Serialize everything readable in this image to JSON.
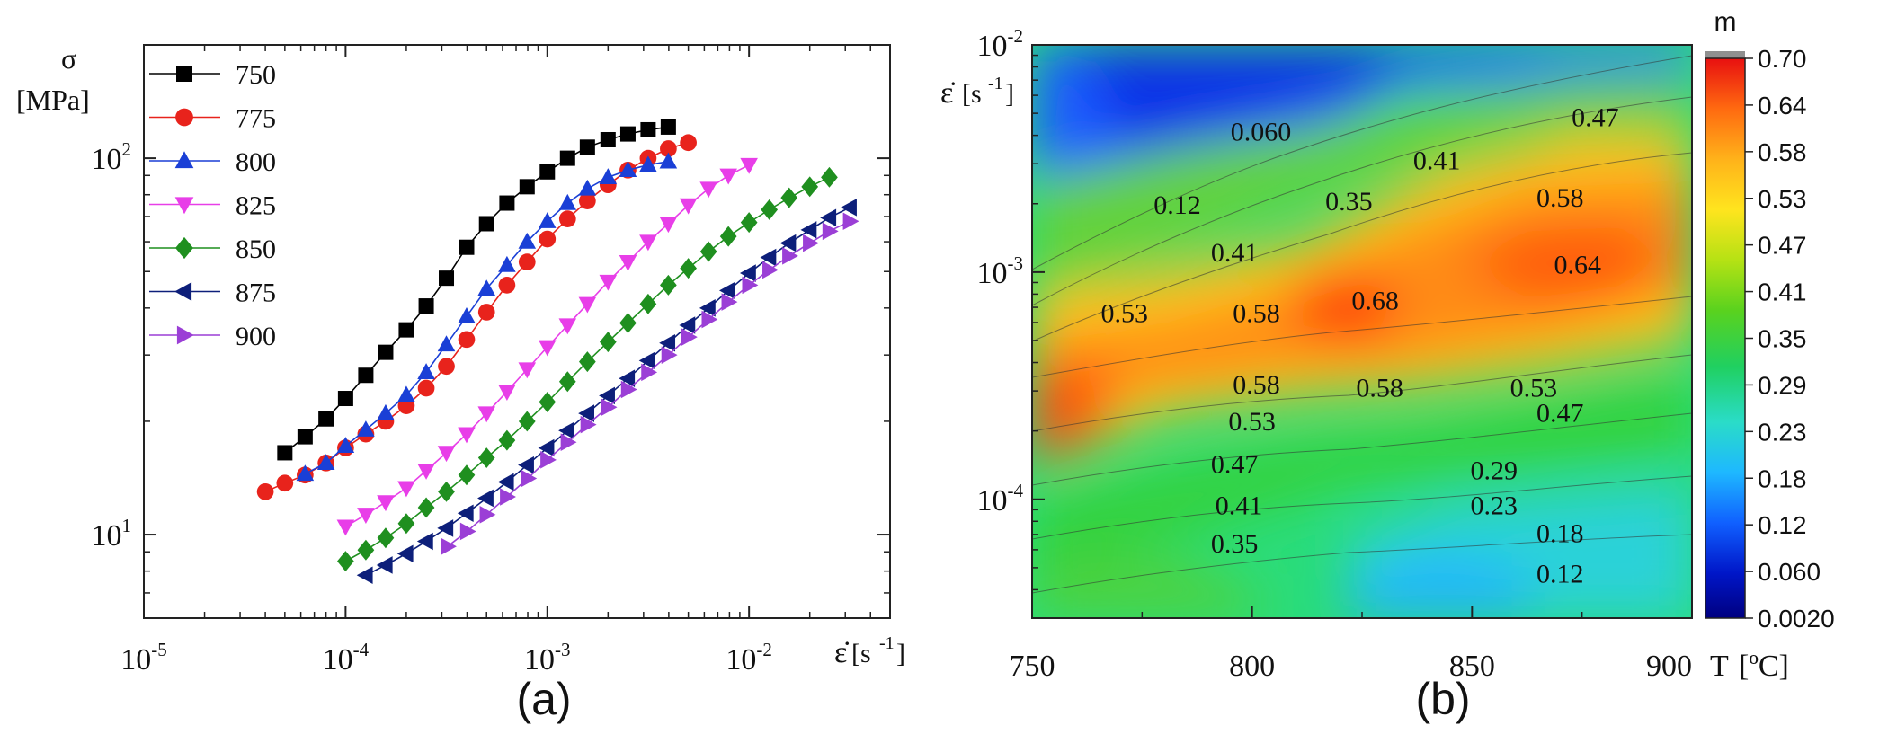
{
  "chart_data": [
    {
      "panel": "(a)",
      "type": "line",
      "xscale": "log",
      "yscale": "log",
      "xlim": [
        1e-05,
        0.05
      ],
      "ylim": [
        6,
        200
      ],
      "ylabel_sym": "σ",
      "ylabel_unit": "[MPa]",
      "xlabel": "ε̇[s-1]",
      "xlabel_sym": "ε̇",
      "xlabel_unit": "[s",
      "xlabel_sup": "-1",
      "xlabel_close": "]",
      "xticks": [
        {
          "value": 1e-05,
          "base": "10",
          "exp": "-5"
        },
        {
          "value": 0.0001,
          "base": "10",
          "exp": "-4"
        },
        {
          "value": 0.001,
          "base": "10",
          "exp": "-3"
        },
        {
          "value": 0.01,
          "base": "10",
          "exp": "-2"
        }
      ],
      "yticks": [
        {
          "value": 10,
          "base": "10",
          "exp": "1"
        },
        {
          "value": 100,
          "base": "10",
          "exp": "2"
        }
      ],
      "legend_position": "top-left",
      "series": [
        {
          "name": "750",
          "color": "#000000",
          "marker": "square",
          "x": [
            5e-05,
            6.3e-05,
            8e-05,
            0.0001,
            0.000126,
            0.000158,
            0.0002,
            0.000251,
            0.000316,
            0.000398,
            0.0005,
            0.000631,
            0.000794,
            0.001,
            0.00126,
            0.00158,
            0.002,
            0.00251,
            0.00316,
            0.00398
          ],
          "y": [
            16.5,
            18.2,
            20.3,
            23,
            26.5,
            30.5,
            35,
            40.5,
            48,
            58,
            67,
            76,
            84,
            92,
            100,
            107,
            112,
            116,
            119,
            121
          ]
        },
        {
          "name": "775",
          "color": "#e8231c",
          "marker": "circle",
          "x": [
            4e-05,
            5e-05,
            6.3e-05,
            8e-05,
            0.0001,
            0.000126,
            0.000158,
            0.0002,
            0.000251,
            0.000316,
            0.000398,
            0.0005,
            0.000631,
            0.000794,
            0.001,
            0.00126,
            0.00158,
            0.002,
            0.00251,
            0.00316,
            0.00398,
            0.005
          ],
          "y": [
            13,
            13.7,
            14.4,
            15.5,
            17,
            18.5,
            20,
            22,
            24.5,
            28,
            33,
            39,
            46,
            53,
            61,
            69,
            77,
            85,
            93,
            100,
            106,
            110
          ]
        },
        {
          "name": "800",
          "color": "#1a3fd6",
          "marker": "triangle-up",
          "x": [
            6.3e-05,
            8e-05,
            0.0001,
            0.000126,
            0.000158,
            0.0002,
            0.000251,
            0.000316,
            0.000398,
            0.0005,
            0.000631,
            0.000794,
            0.001,
            0.00126,
            0.00158,
            0.002,
            0.00251,
            0.00316,
            0.00398
          ],
          "y": [
            14.5,
            15.5,
            17.2,
            19,
            21,
            23.5,
            27,
            32,
            38,
            45,
            52,
            60,
            68,
            76,
            83,
            89,
            93,
            96,
            98
          ]
        },
        {
          "name": "825",
          "color": "#e83ee8",
          "marker": "triangle-down",
          "x": [
            0.0001,
            0.000126,
            0.000158,
            0.0002,
            0.000251,
            0.000316,
            0.000398,
            0.0005,
            0.000631,
            0.000794,
            0.001,
            0.00126,
            0.00158,
            0.002,
            0.00251,
            0.00316,
            0.00398,
            0.005,
            0.0063,
            0.0079,
            0.01
          ],
          "y": [
            10.5,
            11.3,
            12.2,
            13.3,
            14.8,
            16.5,
            18.5,
            21,
            24,
            27.5,
            31.5,
            36,
            41,
            47,
            53,
            60,
            67,
            75,
            83,
            90,
            96
          ]
        },
        {
          "name": "850",
          "color": "#1f8f1f",
          "marker": "diamond",
          "x": [
            0.0001,
            0.000126,
            0.000158,
            0.0002,
            0.000251,
            0.000316,
            0.000398,
            0.0005,
            0.000631,
            0.000794,
            0.001,
            0.00126,
            0.00158,
            0.002,
            0.00251,
            0.00316,
            0.00398,
            0.005,
            0.0063,
            0.0079,
            0.01,
            0.0126,
            0.0158,
            0.02,
            0.025
          ],
          "y": [
            8.5,
            9.1,
            9.8,
            10.7,
            11.8,
            13,
            14.4,
            16,
            17.8,
            20,
            22.5,
            25.5,
            28.8,
            32.5,
            36.5,
            41,
            46,
            51,
            56.5,
            62,
            67.5,
            73,
            78.5,
            84,
            89
          ]
        },
        {
          "name": "875",
          "color": "#0d1f7a",
          "marker": "triangle-left",
          "x": [
            0.000126,
            0.000158,
            0.0002,
            0.000251,
            0.000316,
            0.000398,
            0.0005,
            0.000631,
            0.000794,
            0.001,
            0.00126,
            0.00158,
            0.002,
            0.00251,
            0.00316,
            0.00398,
            0.005,
            0.0063,
            0.0079,
            0.01,
            0.0126,
            0.0158,
            0.02,
            0.025,
            0.0316
          ],
          "y": [
            7.8,
            8.3,
            8.9,
            9.6,
            10.4,
            11.4,
            12.5,
            13.8,
            15.3,
            17,
            18.9,
            21,
            23.4,
            26,
            29,
            32.3,
            36,
            40,
            44.5,
            49.5,
            54.5,
            59.5,
            64.5,
            69.5,
            74
          ]
        },
        {
          "name": "900",
          "color": "#9b3fd6",
          "marker": "triangle-right",
          "x": [
            0.00032,
            0.0004,
            0.0005,
            0.00063,
            0.0008,
            0.001,
            0.00126,
            0.00158,
            0.002,
            0.00251,
            0.00316,
            0.00398,
            0.005,
            0.0063,
            0.0079,
            0.01,
            0.0126,
            0.0158,
            0.02,
            0.025,
            0.0316
          ],
          "y": [
            9.3,
            10.2,
            11.3,
            12.6,
            14.1,
            15.8,
            17.6,
            19.6,
            21.8,
            24.3,
            27,
            30,
            33.5,
            37.3,
            41.5,
            46,
            50.5,
            55,
            59.5,
            64,
            68
          ]
        }
      ]
    },
    {
      "panel": "(b)",
      "type": "heatmap",
      "title_colorbar": "m",
      "xlabel": "T [ºC]",
      "xlabel_T": "T",
      "xlabel_unit": "[ºC]",
      "ylabel": "ε̇ [s-1]",
      "ylabel_sym": "ε̇",
      "ylabel_unit": "[s",
      "ylabel_sup": "-1",
      "ylabel_close": "]",
      "xlim": [
        750,
        900
      ],
      "ylim": [
        3e-05,
        0.01
      ],
      "yscale": "log",
      "xticks": [
        "750",
        "800",
        "850",
        "900"
      ],
      "yticks": [
        {
          "value": 0.01,
          "base": "10",
          "exp": "-2"
        },
        {
          "value": 0.001,
          "base": "10",
          "exp": "-3"
        },
        {
          "value": 0.0001,
          "base": "10",
          "exp": "-4"
        }
      ],
      "colorbar_ticks": [
        "0.70",
        "0.64",
        "0.58",
        "0.53",
        "0.47",
        "0.41",
        "0.35",
        "0.29",
        "0.23",
        "0.18",
        "0.12",
        "0.060",
        "0.0020"
      ],
      "colorbar_range": [
        0.002,
        0.7
      ],
      "contour_labels": [
        {
          "text": "0.060",
          "T": 802,
          "rate": 0.00415
        },
        {
          "text": "0.12",
          "T": 783,
          "rate": 0.00198
        },
        {
          "text": "0.35",
          "T": 822,
          "rate": 0.00205
        },
        {
          "text": "0.41",
          "T": 842,
          "rate": 0.0031
        },
        {
          "text": "0.47",
          "T": 878,
          "rate": 0.0048
        },
        {
          "text": "0.58",
          "T": 870,
          "rate": 0.00213
        },
        {
          "text": "0.41",
          "T": 796,
          "rate": 0.00122
        },
        {
          "text": "0.64",
          "T": 874,
          "rate": 0.00108
        },
        {
          "text": "0.68",
          "T": 828,
          "rate": 0.00075
        },
        {
          "text": "0.53",
          "T": 771,
          "rate": 0.00066
        },
        {
          "text": "0.58",
          "T": 801,
          "rate": 0.00066
        },
        {
          "text": "0.58",
          "T": 801,
          "rate": 0.00032
        },
        {
          "text": "0.58",
          "T": 829,
          "rate": 0.00031
        },
        {
          "text": "0.53",
          "T": 864,
          "rate": 0.00031
        },
        {
          "text": "0.47",
          "T": 870,
          "rate": 0.00024
        },
        {
          "text": "0.53",
          "T": 800,
          "rate": 0.00022
        },
        {
          "text": "0.47",
          "T": 796,
          "rate": 0.000143
        },
        {
          "text": "0.41",
          "T": 797,
          "rate": 9.4e-05
        },
        {
          "text": "0.29",
          "T": 855,
          "rate": 0.000134
        },
        {
          "text": "0.23",
          "T": 855,
          "rate": 9.4e-05
        },
        {
          "text": "0.35",
          "T": 796,
          "rate": 6.4e-05
        },
        {
          "text": "0.18",
          "T": 870,
          "rate": 7.1e-05
        },
        {
          "text": "0.12",
          "T": 870,
          "rate": 4.7e-05
        }
      ]
    }
  ],
  "panel_labels": {
    "a": "(a)",
    "b": "(b)"
  }
}
